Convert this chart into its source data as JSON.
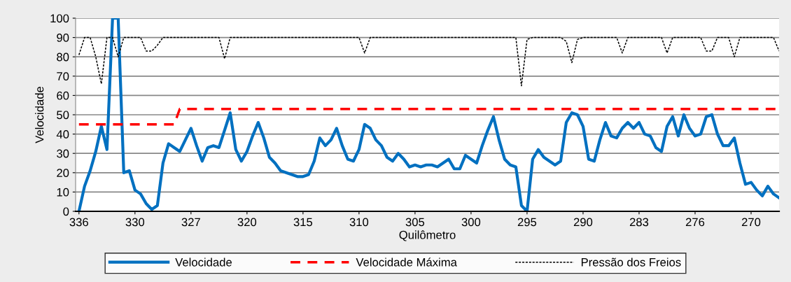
{
  "chart_data": {
    "type": "line",
    "xlabel": "Quilômetro",
    "ylabel": "Velocidade",
    "categories": [
      "336",
      null,
      null,
      null,
      null,
      null,
      null,
      null,
      null,
      null,
      "330",
      null,
      null,
      null,
      null,
      null,
      null,
      null,
      null,
      null,
      "327",
      null,
      null,
      null,
      null,
      null,
      null,
      null,
      null,
      null,
      "320",
      null,
      null,
      null,
      null,
      null,
      null,
      null,
      null,
      null,
      "315",
      null,
      null,
      null,
      null,
      null,
      null,
      null,
      null,
      null,
      "310",
      null,
      null,
      null,
      null,
      null,
      null,
      null,
      null,
      null,
      "305",
      null,
      null,
      null,
      null,
      null,
      null,
      null,
      null,
      null,
      "300",
      null,
      null,
      null,
      null,
      null,
      null,
      null,
      null,
      null,
      "295",
      null,
      null,
      null,
      null,
      null,
      null,
      null,
      null,
      null,
      "290",
      null,
      null,
      null,
      null,
      null,
      null,
      null,
      null,
      null,
      "283",
      null,
      null,
      null,
      null,
      null,
      null,
      null,
      null,
      null,
      "276",
      null,
      null,
      null,
      null,
      null,
      null,
      null,
      null,
      null,
      "270",
      null,
      null,
      null,
      null,
      null
    ],
    "series": [
      {
        "name": "Velocidade",
        "color": "#0070c0",
        "line_style": "solid",
        "values": [
          0,
          13,
          21,
          31,
          44,
          32,
          100,
          100,
          20,
          21,
          11,
          9,
          4,
          1,
          3,
          25,
          35,
          33,
          31,
          37,
          43,
          34,
          26,
          33,
          34,
          33,
          42,
          51,
          32,
          26,
          31,
          39,
          46,
          38,
          28,
          25,
          21,
          20,
          19,
          18,
          18,
          19,
          26,
          38,
          34,
          37,
          43,
          34,
          27,
          26,
          32,
          45,
          43,
          37,
          34,
          28,
          26,
          30,
          27,
          23,
          24,
          23,
          24,
          24,
          23,
          25,
          27,
          22,
          22,
          29,
          27,
          25,
          34,
          42,
          49,
          37,
          27,
          24,
          23,
          3,
          0,
          27,
          32,
          28,
          26,
          24,
          26,
          46,
          51,
          50,
          44,
          27,
          26,
          37,
          46,
          39,
          38,
          43,
          46,
          43,
          46,
          40,
          39,
          33,
          31,
          44,
          49,
          39,
          50,
          43,
          39,
          40,
          49,
          50,
          40,
          34,
          34,
          38,
          25,
          14,
          15,
          11,
          8,
          13,
          9,
          7
        ]
      },
      {
        "name": "Velocidade Máxima",
        "color": "#ff0000",
        "line_style": "dashed",
        "values": [
          45,
          45,
          45,
          45,
          45,
          45,
          45,
          45,
          45,
          45,
          45,
          45,
          45,
          45,
          45,
          45,
          45,
          45,
          53,
          53,
          53,
          53,
          53,
          53,
          53,
          53,
          53,
          53,
          53,
          53,
          53,
          53,
          53,
          53,
          53,
          53,
          53,
          53,
          53,
          53,
          53,
          53,
          53,
          53,
          53,
          53,
          53,
          53,
          53,
          53,
          53,
          53,
          53,
          53,
          53,
          53,
          53,
          53,
          53,
          53,
          53,
          53,
          53,
          53,
          53,
          53,
          53,
          53,
          53,
          53,
          53,
          53,
          53,
          53,
          53,
          53,
          53,
          53,
          53,
          53,
          53,
          53,
          53,
          53,
          53,
          53,
          53,
          53,
          53,
          53,
          53,
          53,
          53,
          53,
          53,
          53,
          53,
          53,
          53,
          53,
          53,
          53,
          53,
          53,
          53,
          53,
          53,
          53,
          53,
          53,
          53,
          53,
          53,
          53,
          53,
          53,
          53,
          53,
          53,
          53,
          53,
          53,
          53,
          53,
          53,
          53
        ]
      },
      {
        "name": "Pressão dos Freios",
        "color": "#000000",
        "line_style": "dotted",
        "values": [
          81,
          90,
          90,
          80,
          66,
          90,
          90,
          80,
          90,
          90,
          90,
          90,
          83,
          83,
          86,
          90,
          90,
          90,
          90,
          90,
          90,
          90,
          90,
          90,
          90,
          90,
          79,
          90,
          90,
          90,
          90,
          90,
          90,
          90,
          90,
          90,
          90,
          90,
          90,
          90,
          90,
          90,
          90,
          90,
          90,
          90,
          90,
          90,
          90,
          90,
          90,
          82,
          90,
          90,
          90,
          90,
          90,
          90,
          90,
          90,
          90,
          90,
          90,
          90,
          90,
          90,
          90,
          90,
          90,
          90,
          90,
          90,
          90,
          90,
          90,
          90,
          90,
          90,
          90,
          65,
          89,
          90,
          90,
          90,
          90,
          90,
          90,
          88,
          77,
          89,
          90,
          90,
          90,
          90,
          90,
          90,
          90,
          82,
          90,
          90,
          90,
          90,
          90,
          90,
          90,
          82,
          90,
          90,
          90,
          90,
          90,
          90,
          83,
          83,
          90,
          90,
          90,
          80,
          90,
          90,
          90,
          90,
          90,
          90,
          90,
          83
        ]
      }
    ],
    "ylim": [
      0,
      100
    ],
    "yticks": [
      0,
      10,
      20,
      30,
      40,
      50,
      60,
      70,
      80,
      90,
      100
    ],
    "grid": "y",
    "legend": "bottom"
  }
}
